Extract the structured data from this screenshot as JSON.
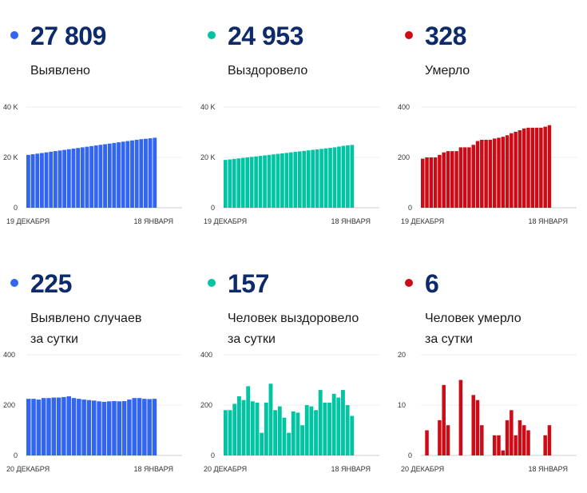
{
  "colors": {
    "blue": "#3366f0",
    "green": "#00c4a2",
    "red": "#cc0b16",
    "value_text": "#0d2a6b"
  },
  "panels": [
    {
      "value": "27 809",
      "label1": "Выявлено",
      "label2": "",
      "color": "#3366f0",
      "chart_data": {
        "type": "bar",
        "ylim": [
          0,
          40000
        ],
        "yticks": [
          "40 K",
          "20 K",
          "0"
        ],
        "x_start": "19 ДЕКАБРЯ",
        "x_end": "18 ЯНВАРЯ",
        "values": [
          21000,
          21250,
          21500,
          21750,
          22000,
          22250,
          22500,
          22750,
          23000,
          23250,
          23500,
          23750,
          24000,
          24250,
          24500,
          24750,
          25000,
          25250,
          25500,
          25750,
          26000,
          26250,
          26500,
          26750,
          27000,
          27250,
          27400,
          27600,
          27809
        ]
      }
    },
    {
      "value": "24 953",
      "label1": "Выздоровело",
      "label2": "",
      "color": "#00c4a2",
      "chart_data": {
        "type": "bar",
        "ylim": [
          0,
          40000
        ],
        "yticks": [
          "40 K",
          "20 K",
          "0"
        ],
        "x_start": "19 ДЕКАБРЯ",
        "x_end": "18 ЯНВАРЯ",
        "values": [
          19000,
          19200,
          19400,
          19600,
          19800,
          20000,
          20200,
          20400,
          20600,
          20800,
          21000,
          21200,
          21400,
          21600,
          21800,
          22000,
          22200,
          22400,
          22600,
          22800,
          23000,
          23200,
          23400,
          23600,
          23800,
          24000,
          24300,
          24600,
          24800,
          24953
        ]
      }
    },
    {
      "value": "328",
      "label1": "Умерло",
      "label2": "",
      "color": "#cc0b16",
      "chart_data": {
        "type": "bar",
        "ylim": [
          0,
          400
        ],
        "yticks": [
          "400",
          "200",
          "0"
        ],
        "x_start": "19 ДЕКАБРЯ",
        "x_end": "18 ЯНВАРЯ",
        "values": [
          195,
          200,
          200,
          200,
          210,
          220,
          225,
          225,
          225,
          240,
          240,
          240,
          250,
          265,
          270,
          270,
          270,
          275,
          278,
          282,
          288,
          296,
          302,
          308,
          315,
          318,
          318,
          318,
          318,
          322,
          328
        ]
      }
    },
    {
      "value": "225",
      "label1": "Выявлено случаев",
      "label2": "за сутки",
      "color": "#3366f0",
      "chart_data": {
        "type": "bar",
        "ylim": [
          0,
          400
        ],
        "yticks": [
          "400",
          "200",
          "0"
        ],
        "x_start": "20 ДЕКАБРЯ",
        "x_end": "18 ЯНВАРЯ",
        "values": [
          225,
          225,
          222,
          228,
          228,
          230,
          230,
          232,
          235,
          228,
          225,
          222,
          220,
          218,
          215,
          213,
          215,
          216,
          215,
          216,
          222,
          228,
          228,
          225,
          224,
          225
        ]
      }
    },
    {
      "value": "157",
      "label1": "Человек выздоровело",
      "label2": "за сутки",
      "color": "#00c4a2",
      "chart_data": {
        "type": "bar",
        "ylim": [
          0,
          400
        ],
        "yticks": [
          "400",
          "200",
          "0"
        ],
        "x_start": "20 ДЕКАБРЯ",
        "x_end": "18 ЯНВАРЯ",
        "values": [
          180,
          180,
          205,
          235,
          220,
          275,
          215,
          210,
          90,
          210,
          285,
          180,
          195,
          150,
          90,
          175,
          170,
          120,
          200,
          195,
          180,
          260,
          210,
          210,
          245,
          230,
          260,
          200,
          157
        ]
      }
    },
    {
      "value": "6",
      "label1": "Человек умерло",
      "label2": "за сутки",
      "color": "#cc0b16",
      "chart_data": {
        "type": "bar",
        "ylim": [
          0,
          20
        ],
        "yticks": [
          "20",
          "10",
          "0"
        ],
        "x_start": "20 ДЕКАБРЯ",
        "x_end": "18 ЯНВАРЯ",
        "values": [
          0,
          5,
          0,
          0,
          7,
          14,
          6,
          0,
          0,
          15,
          0,
          0,
          12,
          11,
          6,
          0,
          0,
          4,
          4,
          1,
          7,
          9,
          4,
          7,
          6,
          5,
          0,
          0,
          0,
          4,
          6
        ]
      }
    }
  ]
}
